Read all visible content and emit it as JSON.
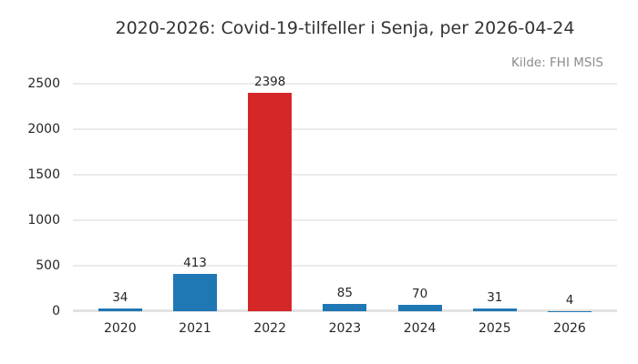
{
  "header": {
    "title": "2020-2026: Covid-19-tilfeller i Senja, per 2026-04-24",
    "source": "Kilde: FHI MSIS"
  },
  "chart_data": {
    "type": "bar",
    "title": "2020-2026: Covid-19-tilfeller i Senja, per 2026-04-24",
    "annotation": "Kilde: FHI MSIS",
    "categories": [
      "2020",
      "2021",
      "2022",
      "2023",
      "2024",
      "2025",
      "2026"
    ],
    "values": [
      34,
      413,
      2398,
      85,
      70,
      31,
      4
    ],
    "bar_colors": [
      "#1f77b4",
      "#1f77b4",
      "#d62728",
      "#1f77b4",
      "#1f77b4",
      "#1f77b4",
      "#1f77b4"
    ],
    "base_bar_color": "#1f77b4",
    "highlight_bar_color": "#d62728",
    "xlabel": "",
    "ylabel": "",
    "ylim": [
      0,
      2500
    ],
    "yticks": [
      0,
      500,
      1000,
      1500,
      2000,
      2500
    ],
    "grid": true,
    "gridline_color": "#ebebeb",
    "legend": "none",
    "value_labels_shown": true
  }
}
